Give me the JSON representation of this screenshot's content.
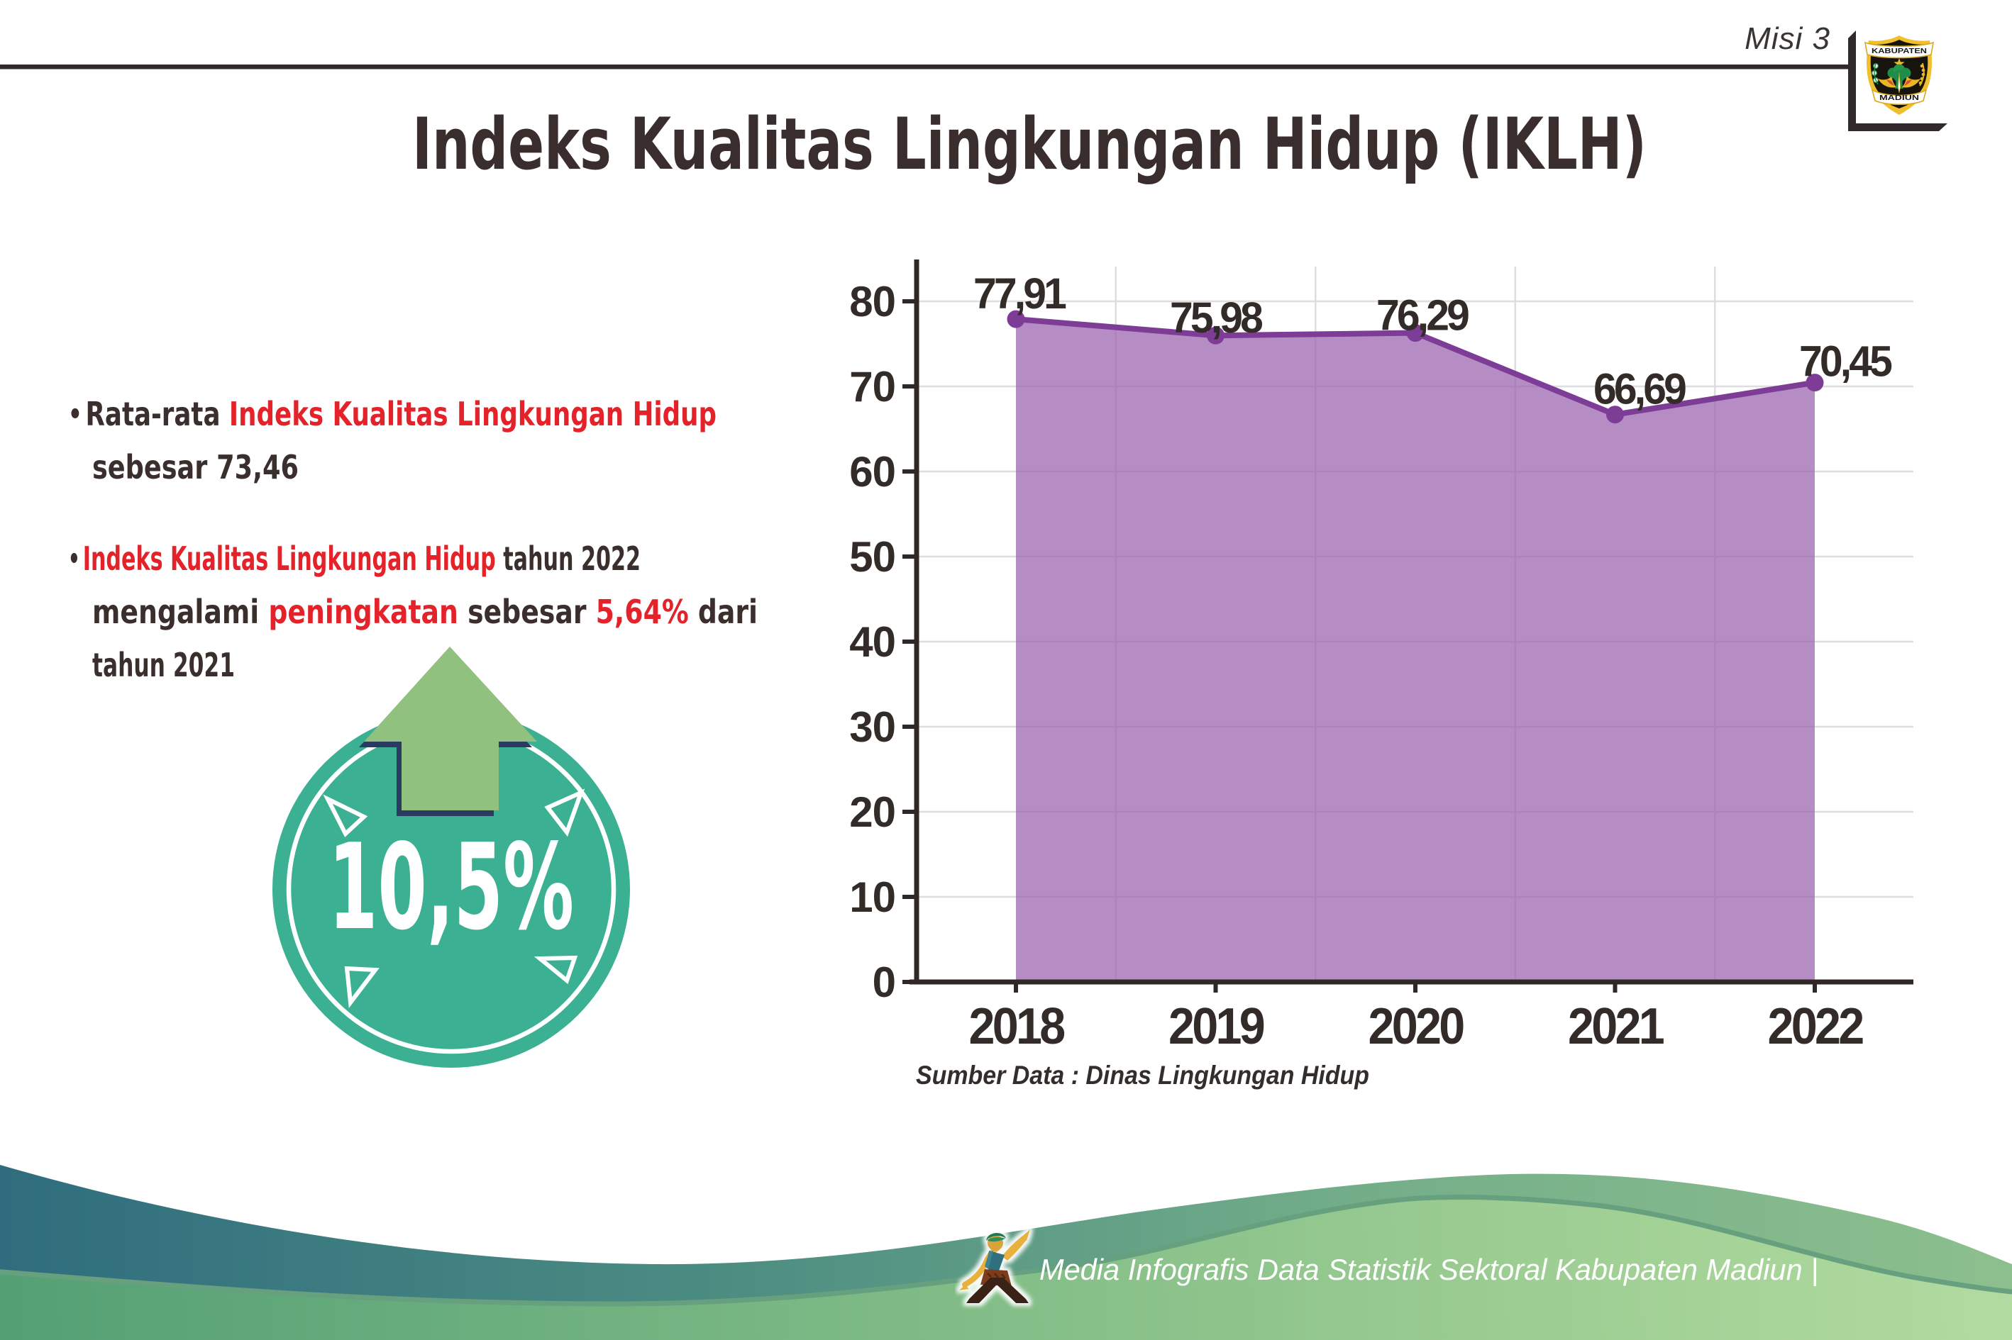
{
  "page": {
    "background": "#ffffff",
    "accent_red": "#e32229",
    "text_dark": "#3a2f2c"
  },
  "header": {
    "mission_label": "Misi 3",
    "title": "Indeks Kualitas Lingkungan Hidup (IKLH)",
    "emblem": {
      "name": "kabupaten-madiun-emblem",
      "banner_top": "KABUPATEN",
      "banner_bottom": "MADIUN"
    }
  },
  "highlights": {
    "bullet1": {
      "marker": "•",
      "line1_dark": "Rata-rata ",
      "line1_red": "Indeks Kualitas Lingkungan Hidup",
      "line2_dark": "sebesar 73,46"
    },
    "bullet2": {
      "marker": "•",
      "line1_red": "Indeks Kualitas Lingkungan Hidup",
      "line1_dark": " tahun 2022",
      "line2_dark1": "mengalami ",
      "line2_red1": "peningkatan",
      "line2_dark2": " sebesar ",
      "line2_red2": "5,64%",
      "line2_dark3": " dari",
      "line3_dark": "tahun 2021"
    },
    "badge": {
      "value": "10,5%",
      "circle_color": "#3bb092",
      "arrow_color": "#90c17e"
    }
  },
  "chart_data": {
    "type": "area",
    "title": "",
    "xlabel": "",
    "ylabel": "",
    "categories": [
      "2018",
      "2019",
      "2020",
      "2021",
      "2022"
    ],
    "series": [
      {
        "name": "IKLH",
        "values": [
          77.91,
          75.98,
          76.29,
          66.69,
          70.45
        ]
      }
    ],
    "point_labels": [
      "77,91",
      "75,98",
      "76,29",
      "66,69",
      "70,45"
    ],
    "ylim": [
      0,
      80
    ],
    "ytick_step": 10,
    "ytick_labels": [
      "0",
      "10",
      "20",
      "30",
      "40",
      "50",
      "60",
      "70",
      "80"
    ],
    "grid": true,
    "legend_position": "none",
    "line_color": "#7d3c96",
    "marker_color": "#7d3c96",
    "fill_color": "#9a5fae",
    "fill_opacity": 0.72,
    "source_note": "Sumber Data : Dinas Lingkungan Hidup"
  },
  "footer": {
    "caption": "Media Infografis Data Statistik Sektoral Kabupaten Madiun |"
  }
}
